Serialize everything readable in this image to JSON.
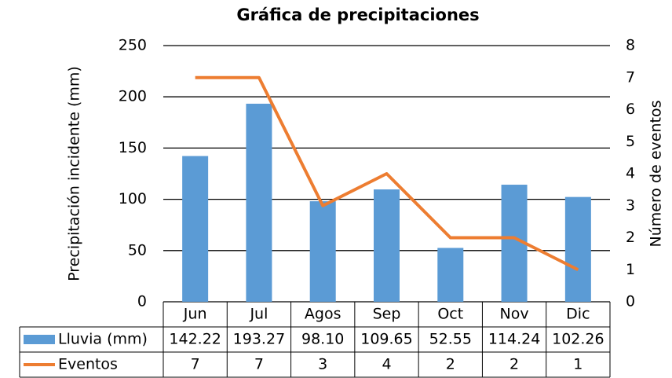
{
  "chart_data": {
    "type": "bar",
    "title": "Gráfica de precipitaciones",
    "y_label": "Precipitación incidente (mm)",
    "y2_label": "Número de eventos",
    "categories": [
      "Jun",
      "Jul",
      "Agos",
      "Sep",
      "Oct",
      "Nov",
      "Dic"
    ],
    "series": [
      {
        "name": "Lluvia (mm)",
        "type": "bar",
        "color": "#5b9bd5",
        "values": [
          142.22,
          193.27,
          98.1,
          109.65,
          52.55,
          114.24,
          102.26
        ],
        "value_labels": [
          "142.22",
          "193.27",
          "98.10",
          "109.65",
          "52.55",
          "114.24",
          "102.26"
        ]
      },
      {
        "name": "Eventos",
        "type": "line",
        "axis": "y2",
        "color": "#ed7d31",
        "values": [
          7,
          7,
          3,
          4,
          2,
          2,
          1
        ]
      }
    ],
    "ylim": [
      0,
      250
    ],
    "yticks": [
      0,
      50,
      100,
      150,
      200,
      250
    ],
    "y2lim": [
      0,
      8
    ],
    "y2ticks": [
      0,
      1,
      2,
      3,
      4,
      5,
      6,
      7,
      8
    ],
    "grid": true,
    "data_table": true
  }
}
